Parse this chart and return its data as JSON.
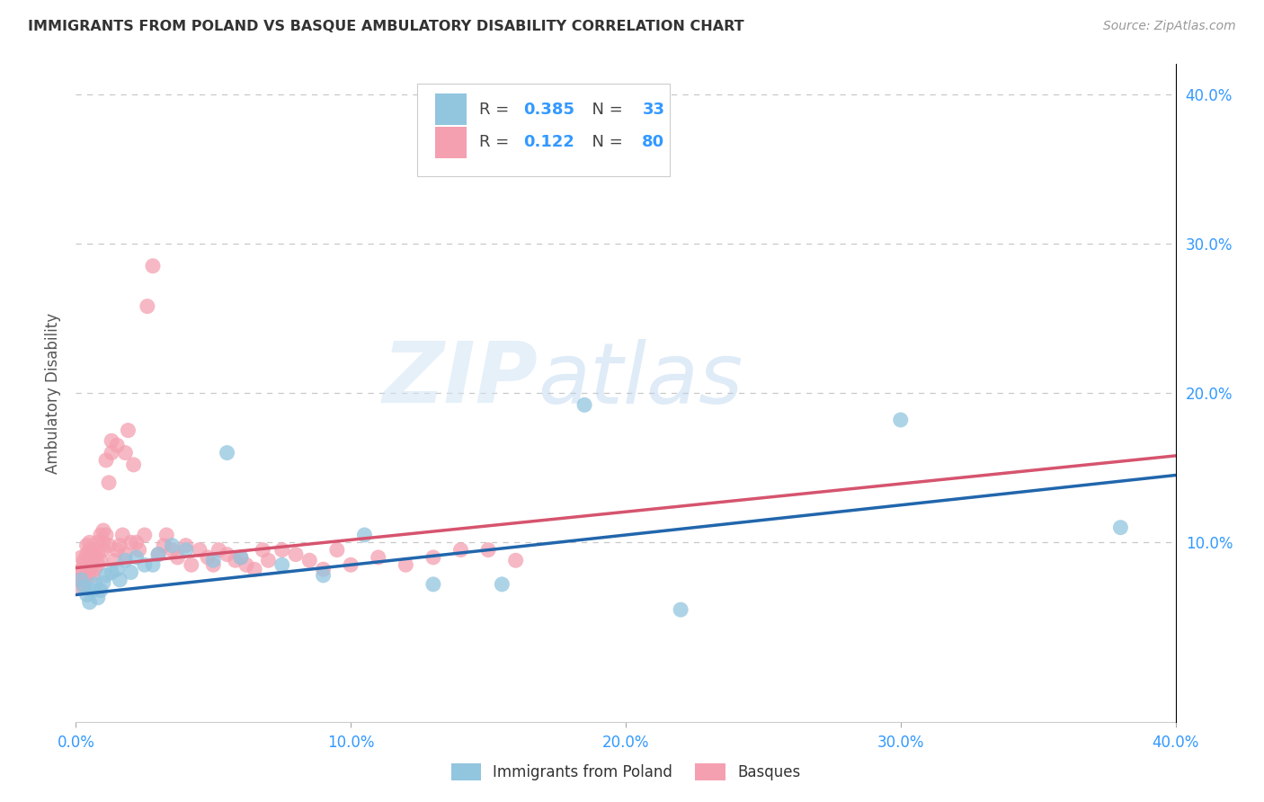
{
  "title": "IMMIGRANTS FROM POLAND VS BASQUE AMBULATORY DISABILITY CORRELATION CHART",
  "source": "Source: ZipAtlas.com",
  "ylabel": "Ambulatory Disability",
  "xlim": [
    0.0,
    0.4
  ],
  "ylim": [
    -0.02,
    0.42
  ],
  "xticks": [
    0.0,
    0.1,
    0.2,
    0.3,
    0.4
  ],
  "yticks": [
    0.1,
    0.2,
    0.3,
    0.4
  ],
  "xticklabels": [
    "0.0%",
    "10.0%",
    "20.0%",
    "30.0%",
    "40.0%"
  ],
  "yticklabels": [
    "10.0%",
    "20.0%",
    "30.0%",
    "40.0%"
  ],
  "legend1_label": "Immigrants from Poland",
  "legend2_label": "Basques",
  "R1": 0.385,
  "N1": 33,
  "R2": 0.122,
  "N2": 80,
  "blue_color": "#92c5de",
  "pink_color": "#f4a0b0",
  "blue_line_color": "#2166ac",
  "pink_line_color": "#d6546e",
  "blue_scatter_x": [
    0.002,
    0.003,
    0.004,
    0.005,
    0.006,
    0.007,
    0.008,
    0.009,
    0.01,
    0.011,
    0.013,
    0.015,
    0.016,
    0.018,
    0.02,
    0.022,
    0.025,
    0.028,
    0.03,
    0.035,
    0.04,
    0.05,
    0.055,
    0.06,
    0.075,
    0.09,
    0.105,
    0.13,
    0.155,
    0.185,
    0.22,
    0.3,
    0.38
  ],
  "blue_scatter_y": [
    0.075,
    0.07,
    0.065,
    0.06,
    0.068,
    0.072,
    0.063,
    0.068,
    0.073,
    0.078,
    0.08,
    0.082,
    0.075,
    0.088,
    0.08,
    0.09,
    0.085,
    0.085,
    0.092,
    0.098,
    0.095,
    0.088,
    0.16,
    0.09,
    0.085,
    0.078,
    0.105,
    0.072,
    0.072,
    0.192,
    0.055,
    0.182,
    0.11
  ],
  "pink_scatter_x": [
    0.001,
    0.001,
    0.002,
    0.002,
    0.002,
    0.003,
    0.003,
    0.003,
    0.004,
    0.004,
    0.004,
    0.005,
    0.005,
    0.005,
    0.005,
    0.006,
    0.006,
    0.006,
    0.007,
    0.007,
    0.007,
    0.008,
    0.008,
    0.008,
    0.009,
    0.009,
    0.01,
    0.01,
    0.01,
    0.011,
    0.011,
    0.012,
    0.012,
    0.013,
    0.013,
    0.014,
    0.015,
    0.015,
    0.016,
    0.017,
    0.018,
    0.018,
    0.019,
    0.02,
    0.021,
    0.022,
    0.023,
    0.025,
    0.026,
    0.028,
    0.03,
    0.032,
    0.033,
    0.035,
    0.037,
    0.04,
    0.042,
    0.045,
    0.048,
    0.05,
    0.052,
    0.055,
    0.058,
    0.06,
    0.062,
    0.065,
    0.068,
    0.07,
    0.075,
    0.08,
    0.085,
    0.09,
    0.095,
    0.1,
    0.11,
    0.12,
    0.13,
    0.14,
    0.15,
    0.16
  ],
  "pink_scatter_y": [
    0.075,
    0.08,
    0.07,
    0.082,
    0.09,
    0.072,
    0.085,
    0.088,
    0.078,
    0.092,
    0.098,
    0.08,
    0.088,
    0.095,
    0.1,
    0.078,
    0.085,
    0.092,
    0.082,
    0.09,
    0.095,
    0.085,
    0.092,
    0.1,
    0.088,
    0.105,
    0.095,
    0.1,
    0.108,
    0.105,
    0.155,
    0.098,
    0.14,
    0.16,
    0.168,
    0.088,
    0.095,
    0.165,
    0.098,
    0.105,
    0.092,
    0.16,
    0.175,
    0.1,
    0.152,
    0.1,
    0.095,
    0.105,
    0.258,
    0.285,
    0.092,
    0.098,
    0.105,
    0.095,
    0.09,
    0.098,
    0.085,
    0.095,
    0.09,
    0.085,
    0.095,
    0.092,
    0.088,
    0.09,
    0.085,
    0.082,
    0.095,
    0.088,
    0.095,
    0.092,
    0.088,
    0.082,
    0.095,
    0.085,
    0.09,
    0.085,
    0.09,
    0.095,
    0.095,
    0.088
  ],
  "watermark_zip": "ZIP",
  "watermark_atlas": "atlas",
  "background_color": "#ffffff",
  "grid_color": "#c8c8c8"
}
